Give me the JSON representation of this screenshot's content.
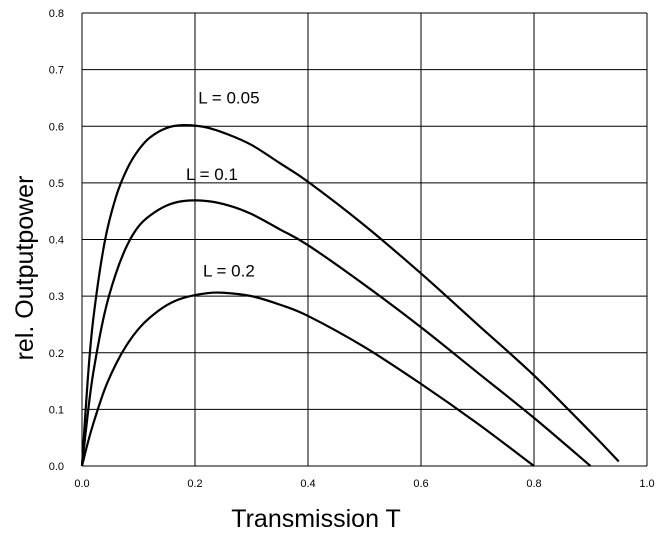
{
  "chart_data": {
    "type": "line",
    "title": "",
    "xlabel": "Transmission T",
    "ylabel": "rel. Outputpower",
    "xlim": [
      0,
      1.0
    ],
    "ylim": [
      0,
      0.8
    ],
    "grid": true,
    "legend": "none",
    "x_ticks": [
      {
        "value": 0.0,
        "label": "0.0"
      },
      {
        "value": 0.2,
        "label": "0.2"
      },
      {
        "value": 0.4,
        "label": "0.4"
      },
      {
        "value": 0.6,
        "label": "0.6"
      },
      {
        "value": 0.8,
        "label": "0.8"
      },
      {
        "value": 1.0,
        "label": "1.0"
      }
    ],
    "y_ticks": [
      {
        "value": 0.0,
        "label": "0.0"
      },
      {
        "value": 0.1,
        "label": "0.1"
      },
      {
        "value": 0.2,
        "label": "0.2"
      },
      {
        "value": 0.3,
        "label": "0.3"
      },
      {
        "value": 0.4,
        "label": "0.4"
      },
      {
        "value": 0.5,
        "label": "0.5"
      },
      {
        "value": 0.6,
        "label": "0.6"
      },
      {
        "value": 0.7,
        "label": "0.7"
      },
      {
        "value": 0.8,
        "label": "0.8"
      }
    ],
    "series": [
      {
        "name": "L = 0.05",
        "label_at": [
          0.26,
          0.64
        ],
        "x": [
          0.0,
          0.01,
          0.02,
          0.04,
          0.06,
          0.08,
          0.1,
          0.12,
          0.15,
          0.18,
          0.22,
          0.26,
          0.3,
          0.35,
          0.4,
          0.5,
          0.6,
          0.7,
          0.8,
          0.9,
          0.95
        ],
        "y": [
          0.0,
          0.15,
          0.26,
          0.395,
          0.475,
          0.525,
          0.558,
          0.58,
          0.597,
          0.602,
          0.598,
          0.585,
          0.567,
          0.535,
          0.502,
          0.425,
          0.34,
          0.25,
          0.16,
          0.06,
          0.008
        ]
      },
      {
        "name": "L = 0.1",
        "label_at": [
          0.23,
          0.505
        ],
        "x": [
          0.0,
          0.01,
          0.02,
          0.04,
          0.06,
          0.08,
          0.1,
          0.12,
          0.15,
          0.18,
          0.22,
          0.26,
          0.3,
          0.35,
          0.4,
          0.5,
          0.6,
          0.7,
          0.8,
          0.9
        ],
        "y": [
          0.0,
          0.09,
          0.165,
          0.27,
          0.34,
          0.39,
          0.423,
          0.442,
          0.46,
          0.468,
          0.468,
          0.46,
          0.445,
          0.418,
          0.39,
          0.32,
          0.245,
          0.165,
          0.085,
          0.0
        ]
      },
      {
        "name": "L = 0.2",
        "label_at": [
          0.26,
          0.335
        ],
        "x": [
          0.0,
          0.01,
          0.02,
          0.04,
          0.06,
          0.08,
          0.1,
          0.12,
          0.15,
          0.18,
          0.22,
          0.25,
          0.3,
          0.35,
          0.4,
          0.5,
          0.6,
          0.7,
          0.8
        ],
        "y": [
          0.0,
          0.04,
          0.075,
          0.135,
          0.18,
          0.215,
          0.242,
          0.262,
          0.284,
          0.297,
          0.305,
          0.306,
          0.3,
          0.285,
          0.265,
          0.21,
          0.145,
          0.075,
          0.0
        ]
      }
    ]
  }
}
